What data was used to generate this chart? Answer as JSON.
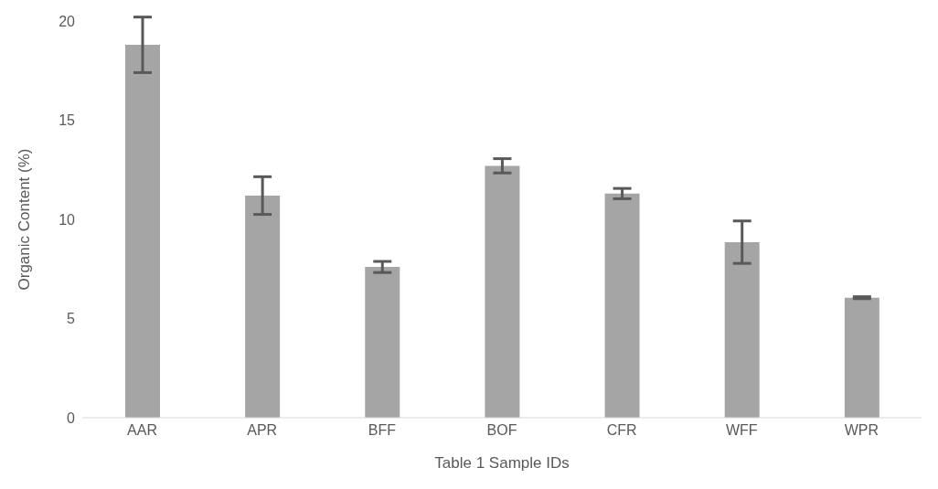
{
  "chart_data": {
    "type": "bar",
    "xlabel": "Table 1 Sample IDs",
    "ylabel": "Organic Content (%)",
    "categories": [
      "AAR",
      "APR",
      "BFF",
      "BOF",
      "CFR",
      "WFF",
      "WPR"
    ],
    "values": [
      18.8,
      11.2,
      7.6,
      12.7,
      11.3,
      8.85,
      6.05
    ],
    "errors": [
      1.4,
      0.95,
      0.28,
      0.36,
      0.26,
      1.07,
      0.05
    ],
    "color": "#a5a5a5",
    "ylim": [
      0,
      20
    ],
    "yticks": [
      0,
      5,
      10,
      15,
      20
    ],
    "grid": false,
    "legend": false
  }
}
